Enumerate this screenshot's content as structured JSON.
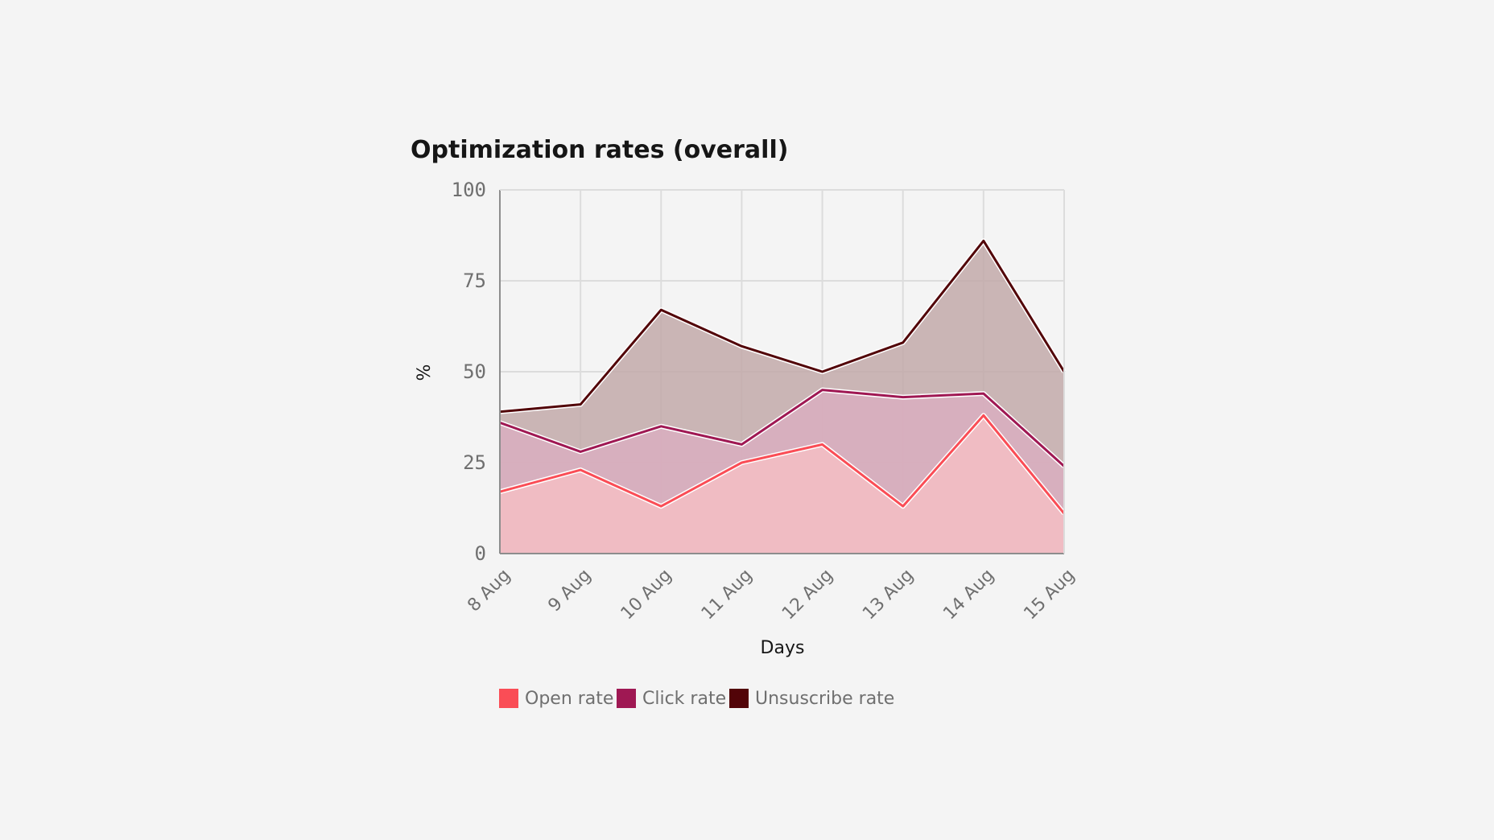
{
  "chart_data": {
    "type": "area",
    "title": "Optimization rates (overall)",
    "xlabel": "Days",
    "ylabel": "%",
    "ylim": [
      0,
      100
    ],
    "yticks": [
      0,
      25,
      50,
      75,
      100
    ],
    "categories": [
      "8 Aug",
      "9 Aug",
      "10 Aug",
      "11 Aug",
      "12 Aug",
      "13 Aug",
      "14 Aug",
      "15 Aug"
    ],
    "stacked": false,
    "grid": true,
    "legend_position": "bottom-left",
    "series": [
      {
        "name": "Unsuscribe rate",
        "color": "#520408",
        "fill": "#c2a9a9",
        "values": [
          39,
          41,
          67,
          57,
          50,
          58,
          86,
          50
        ]
      },
      {
        "name": "Click rate",
        "color": "#9f1853",
        "fill": "#d9aec0",
        "values": [
          36,
          28,
          35,
          30,
          45,
          43,
          44,
          24
        ]
      },
      {
        "name": "Open rate",
        "color": "#fa4d56",
        "fill": "#f5bec4",
        "values": [
          17,
          23,
          13,
          25,
          30,
          13,
          38,
          11
        ]
      }
    ],
    "legend": [
      "Open rate",
      "Click rate",
      "Unsuscribe rate"
    ]
  }
}
